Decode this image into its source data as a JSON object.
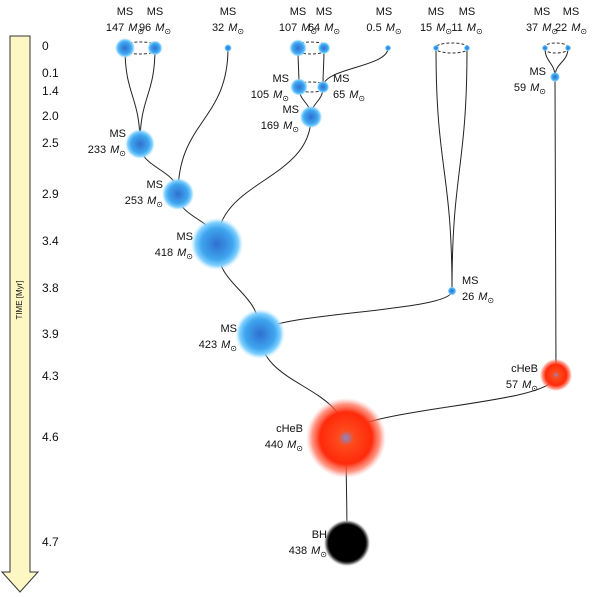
{
  "time_axis": {
    "label": "TIME [Myr]",
    "ticks": [
      "0",
      "0.1",
      "1.4",
      "2.0",
      "2.5",
      "2.9",
      "3.4",
      "3.8",
      "3.9",
      "4.3",
      "4.6",
      "4.7"
    ]
  },
  "mass_unit": {
    "symbol": "M",
    "subscript": "⊙"
  },
  "nodes": [
    {
      "stage": "MS",
      "mass": "147"
    },
    {
      "stage": "MS",
      "mass": "96"
    },
    {
      "stage": "MS",
      "mass": "32"
    },
    {
      "stage": "MS",
      "mass": "107"
    },
    {
      "stage": "MS",
      "mass": "64"
    },
    {
      "stage": "MS",
      "mass": "0.5"
    },
    {
      "stage": "MS",
      "mass": "15"
    },
    {
      "stage": "MS",
      "mass": "11"
    },
    {
      "stage": "MS",
      "mass": "37"
    },
    {
      "stage": "MS",
      "mass": "22"
    },
    {
      "stage": "MS",
      "mass": "105"
    },
    {
      "stage": "MS",
      "mass": "65"
    },
    {
      "stage": "MS",
      "mass": "59"
    },
    {
      "stage": "MS",
      "mass": "169"
    },
    {
      "stage": "MS",
      "mass": "233"
    },
    {
      "stage": "MS",
      "mass": "253"
    },
    {
      "stage": "MS",
      "mass": "418"
    },
    {
      "stage": "MS",
      "mass": "26"
    },
    {
      "stage": "MS",
      "mass": "423"
    },
    {
      "stage": "cHeB",
      "mass": "57"
    },
    {
      "stage": "cHeB",
      "mass": "440"
    },
    {
      "stage": "BH",
      "mass": "438"
    }
  ]
}
